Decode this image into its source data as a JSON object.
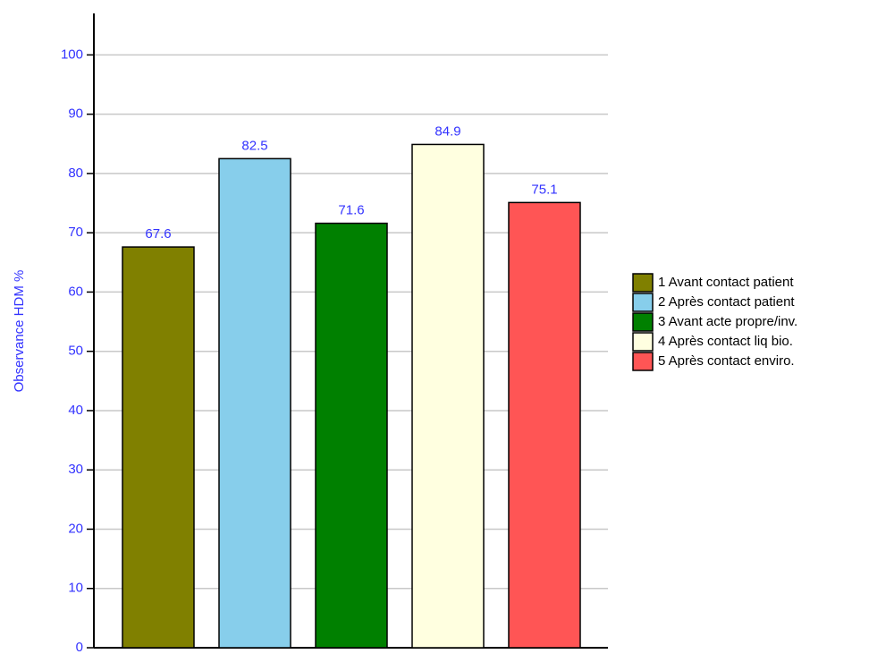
{
  "chart_data": {
    "type": "bar",
    "y_label": "Observance HDM %",
    "categories": [
      "1 Avant contact patient",
      "2 Après contact patient",
      "3 Avant acte propre/inv.",
      "4 Après contact liq bio.",
      "5 Après contact enviro."
    ],
    "values": [
      67.6,
      82.5,
      71.6,
      84.9,
      75.1
    ],
    "colors": [
      "#808000",
      "#87ceeb",
      "#008000",
      "#ffffe0",
      "#ff5555"
    ],
    "ylim": [
      0,
      107
    ],
    "yticks": [
      0,
      10,
      20,
      30,
      40,
      50,
      60,
      70,
      80,
      90,
      100
    ],
    "grid": true,
    "legend": "right"
  }
}
